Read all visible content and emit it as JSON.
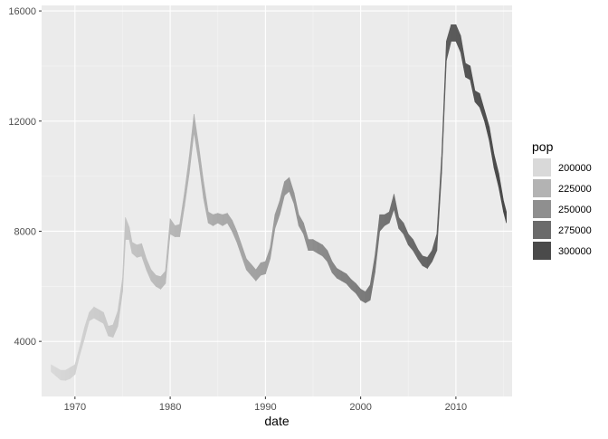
{
  "chart_data": {
    "type": "area",
    "title": "",
    "xlabel": "date",
    "ylabel": "",
    "xlim": [
      1966.5,
      2015.9
    ],
    "ylim": [
      2000,
      16200
    ],
    "x_ticks": [
      1970,
      1980,
      1990,
      2000,
      2010
    ],
    "x_tick_labels": [
      "1970",
      "1980",
      "1990",
      "2000",
      "2010"
    ],
    "y_ticks": [
      4000,
      8000,
      12000,
      16000
    ],
    "y_tick_labels": [
      "4000",
      "8000",
      "12000",
      "16000"
    ],
    "grid": true,
    "legend": {
      "title": "pop",
      "position": "right",
      "entries": [
        {
          "label": "200000",
          "color": "#d9d9d9"
        },
        {
          "label": "225000",
          "color": "#b3b3b3"
        },
        {
          "label": "250000",
          "color": "#8f8f8f"
        },
        {
          "label": "275000",
          "color": "#6b6b6b"
        },
        {
          "label": "300000",
          "color": "#4a4a4a"
        }
      ]
    },
    "pop_range": [
      199000,
      322000
    ],
    "series": [
      {
        "points": [
          [
            1967.5,
            2900,
            3150,
            199000
          ],
          [
            1968.0,
            2750,
            3050,
            200500
          ],
          [
            1968.5,
            2600,
            2950,
            201500
          ],
          [
            1969.0,
            2580,
            2950,
            202700
          ],
          [
            1969.5,
            2650,
            3050,
            203800
          ],
          [
            1970.0,
            2800,
            3150,
            205000
          ],
          [
            1970.5,
            3500,
            3800,
            206200
          ],
          [
            1971.0,
            4100,
            4500,
            207600
          ],
          [
            1971.5,
            4750,
            5050,
            208800
          ],
          [
            1972.0,
            4850,
            5250,
            209900
          ],
          [
            1972.5,
            4750,
            5150,
            211000
          ],
          [
            1973.0,
            4650,
            5050,
            212000
          ],
          [
            1973.5,
            4200,
            4550,
            213000
          ],
          [
            1974.0,
            4150,
            4600,
            214000
          ],
          [
            1974.5,
            4550,
            5100,
            215000
          ],
          [
            1975.0,
            5800,
            6300,
            215900
          ],
          [
            1975.3,
            7700,
            8500,
            216500
          ],
          [
            1975.7,
            7700,
            8150,
            217300
          ],
          [
            1976.0,
            7200,
            7600,
            218000
          ],
          [
            1976.5,
            7050,
            7500,
            219000
          ],
          [
            1977.0,
            7100,
            7550,
            220200
          ],
          [
            1977.5,
            6600,
            7000,
            221400
          ],
          [
            1978.0,
            6200,
            6600,
            222600
          ],
          [
            1978.5,
            6000,
            6400,
            223800
          ],
          [
            1979.0,
            5900,
            6350,
            225000
          ],
          [
            1979.5,
            6100,
            6550,
            226200
          ],
          [
            1980.0,
            7900,
            8450,
            227400
          ],
          [
            1980.5,
            7800,
            8200,
            228600
          ],
          [
            1981.0,
            7800,
            8250,
            229700
          ],
          [
            1981.5,
            8900,
            9400,
            230800
          ],
          [
            1982.0,
            10100,
            10700,
            231800
          ],
          [
            1982.5,
            11600,
            12250,
            232700
          ],
          [
            1983.0,
            10500,
            11100,
            233600
          ],
          [
            1983.5,
            9200,
            9800,
            234600
          ],
          [
            1984.0,
            8300,
            8700,
            235600
          ],
          [
            1984.5,
            8200,
            8600,
            236700
          ],
          [
            1985.0,
            8300,
            8650,
            237600
          ],
          [
            1985.5,
            8200,
            8600,
            238700
          ],
          [
            1986.0,
            8300,
            8650,
            239600
          ],
          [
            1986.5,
            8000,
            8400,
            240500
          ],
          [
            1987.0,
            7600,
            8000,
            241500
          ],
          [
            1987.5,
            7100,
            7500,
            242400
          ],
          [
            1988.0,
            6600,
            7000,
            243400
          ],
          [
            1988.5,
            6400,
            6800,
            244200
          ],
          [
            1989.0,
            6200,
            6600,
            245300
          ],
          [
            1989.5,
            6400,
            6850,
            246500
          ],
          [
            1990.0,
            6450,
            6900,
            247700
          ],
          [
            1990.5,
            7000,
            7400,
            249000
          ],
          [
            1991.0,
            8100,
            8600,
            250800
          ],
          [
            1991.5,
            8600,
            9100,
            252100
          ],
          [
            1992.0,
            9300,
            9800,
            253500
          ],
          [
            1992.5,
            9450,
            9950,
            254800
          ],
          [
            1993.0,
            9000,
            9400,
            256000
          ],
          [
            1993.5,
            8200,
            8600,
            257500
          ],
          [
            1994.0,
            7900,
            8300,
            258800
          ],
          [
            1994.5,
            7300,
            7700,
            260200
          ],
          [
            1995.0,
            7300,
            7700,
            261500
          ],
          [
            1995.5,
            7200,
            7600,
            262900
          ],
          [
            1996.0,
            7100,
            7500,
            264200
          ],
          [
            1996.5,
            6900,
            7300,
            265600
          ],
          [
            1997.0,
            6500,
            6900,
            267100
          ],
          [
            1997.5,
            6300,
            6650,
            268500
          ],
          [
            1998.0,
            6200,
            6550,
            270000
          ],
          [
            1998.5,
            6100,
            6450,
            271600
          ],
          [
            1999.0,
            5900,
            6250,
            273100
          ],
          [
            1999.5,
            5750,
            6100,
            274600
          ],
          [
            2000.0,
            5500,
            5900,
            276500
          ],
          [
            2000.5,
            5400,
            5800,
            277900
          ],
          [
            2001.0,
            5500,
            6050,
            279400
          ],
          [
            2001.5,
            6500,
            7100,
            280700
          ],
          [
            2002.0,
            8000,
            8600,
            282000
          ],
          [
            2002.5,
            8200,
            8600,
            283300
          ],
          [
            2003.0,
            8300,
            8700,
            284600
          ],
          [
            2003.5,
            8800,
            9350,
            285800
          ],
          [
            2004.0,
            8100,
            8500,
            287100
          ],
          [
            2004.5,
            7900,
            8300,
            288400
          ],
          [
            2005.0,
            7500,
            7900,
            289800
          ],
          [
            2005.5,
            7300,
            7700,
            291200
          ],
          [
            2006.0,
            7000,
            7350,
            292600
          ],
          [
            2006.5,
            6750,
            7100,
            294100
          ],
          [
            2007.0,
            6650,
            7050,
            295500
          ],
          [
            2007.5,
            6900,
            7300,
            297000
          ],
          [
            2008.0,
            7300,
            7900,
            298500
          ],
          [
            2008.5,
            10100,
            10700,
            300000
          ],
          [
            2009.0,
            14200,
            14900,
            301500
          ],
          [
            2009.5,
            14900,
            15500,
            302900
          ],
          [
            2010.0,
            14900,
            15500,
            304400
          ],
          [
            2010.5,
            14500,
            15100,
            305700
          ],
          [
            2011.0,
            13600,
            14100,
            307200
          ],
          [
            2011.5,
            13500,
            14000,
            308600
          ],
          [
            2012.0,
            12700,
            13100,
            310100
          ],
          [
            2012.5,
            12500,
            13000,
            311400
          ],
          [
            2013.0,
            12000,
            12400,
            312800
          ],
          [
            2013.5,
            11300,
            11800,
            314200
          ],
          [
            2014.0,
            10300,
            10800,
            315600
          ],
          [
            2014.5,
            9600,
            10100,
            317000
          ],
          [
            2015.0,
            8700,
            9100,
            318500
          ],
          [
            2015.3,
            8300,
            8700,
            319600
          ]
        ]
      }
    ]
  }
}
